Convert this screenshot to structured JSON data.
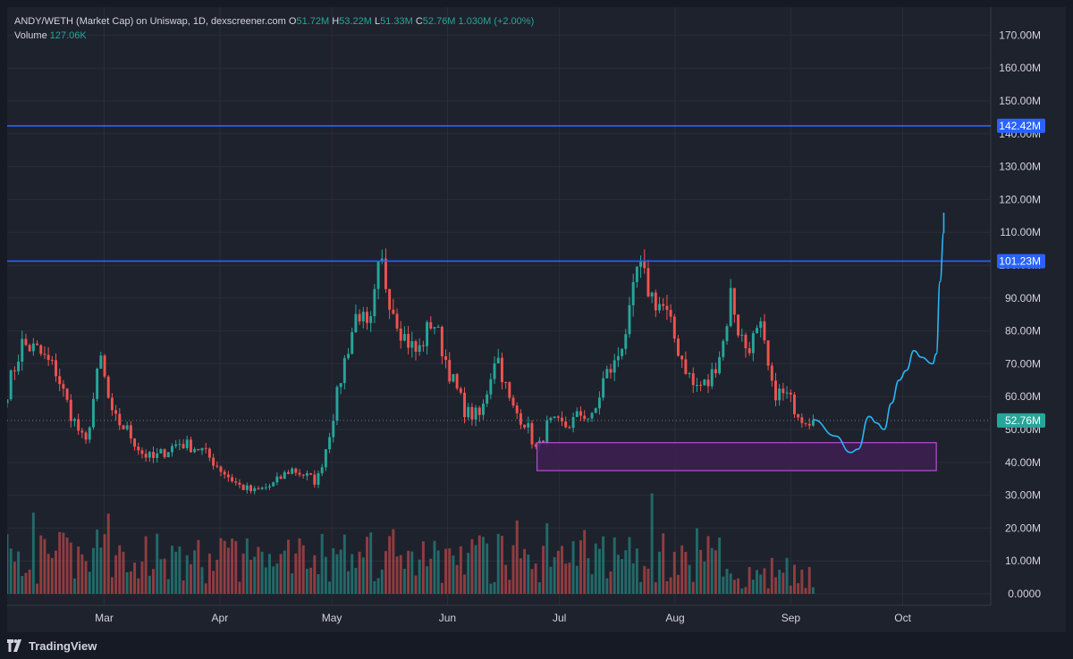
{
  "header": {
    "symbol": "ANDY/WETH (Market Cap) on Uniswap, 1D, dexscreener.com",
    "open_label": "O",
    "open": "51.72M",
    "high_label": "H",
    "high": "53.22M",
    "low_label": "L",
    "low": "51.33M",
    "close_label": "C",
    "close": "52.76M",
    "change": "1.030M (+2.00%)",
    "volume_label": "Volume",
    "volume": "127.06K"
  },
  "footer": {
    "brand": "TradingView"
  },
  "colors": {
    "background": "#1e222d",
    "grid": "#2a2e39",
    "up": "#26a69a",
    "down": "#ef5350",
    "hline": "#2962ff",
    "zone_fill": "#3d1f52",
    "zone_border": "#b74fd0",
    "projection": "#29b6f6",
    "text": "#d1d4dc"
  },
  "chart_data": {
    "type": "candlestick",
    "y_axis": {
      "ticks": [
        "170.00M",
        "160.00M",
        "150.00M",
        "140.00M",
        "130.00M",
        "120.00M",
        "110.00M",
        "100.00M",
        "90.00M",
        "80.00M",
        "70.00M",
        "60.00M",
        "50.00M",
        "40.00M",
        "30.00M",
        "20.00M",
        "10.00M",
        "0.0000"
      ],
      "tick_values": [
        170,
        160,
        150,
        140,
        130,
        120,
        110,
        100,
        90,
        80,
        70,
        60,
        50,
        40,
        30,
        20,
        10,
        0
      ],
      "unit": "M",
      "range": [
        0,
        176
      ]
    },
    "x_axis": {
      "labels": [
        "Mar",
        "Apr",
        "May",
        "Jun",
        "Jul",
        "Aug",
        "Sep",
        "Oct"
      ],
      "label_dates": [
        "2024-03-01",
        "2024-04-01",
        "2024-05-01",
        "2024-06-01",
        "2024-07-01",
        "2024-08-01",
        "2024-09-01",
        "2024-10-01"
      ],
      "start": "2024-02-04",
      "end": "2024-10-15"
    },
    "horizontal_levels": [
      {
        "value": 142.42,
        "label": "142.42M"
      },
      {
        "value": 101.23,
        "label": "101.23M"
      }
    ],
    "last_price": {
      "value": 52.76,
      "label": "52.76M"
    },
    "zone": {
      "start": "2024-06-25",
      "end": "2024-10-10",
      "top": 46,
      "bottom": 37.5
    },
    "projection_path": [
      [
        "2024-09-07",
        53
      ],
      [
        "2024-09-13",
        48
      ],
      [
        "2024-09-17",
        43
      ],
      [
        "2024-09-19",
        44
      ],
      [
        "2024-09-22",
        54
      ],
      [
        "2024-09-24",
        52
      ],
      [
        "2024-09-26",
        50
      ],
      [
        "2024-09-28",
        58
      ],
      [
        "2024-09-30",
        65
      ],
      [
        "2024-10-02",
        68
      ],
      [
        "2024-10-04",
        74
      ],
      [
        "2024-10-06",
        72
      ],
      [
        "2024-10-09",
        70
      ],
      [
        "2024-10-10",
        73
      ],
      [
        "2024-10-11",
        95
      ],
      [
        "2024-10-12",
        110
      ],
      [
        "2024-10-12",
        116
      ]
    ],
    "anchors": [
      [
        "2024-02-04",
        62
      ],
      [
        "2024-02-08",
        76
      ],
      [
        "2024-02-12",
        74
      ],
      [
        "2024-02-17",
        68
      ],
      [
        "2024-02-21",
        55
      ],
      [
        "2024-02-25",
        45
      ],
      [
        "2024-02-29",
        72
      ],
      [
        "2024-03-03",
        54
      ],
      [
        "2024-03-07",
        50
      ],
      [
        "2024-03-11",
        43
      ],
      [
        "2024-03-14",
        41
      ],
      [
        "2024-03-21",
        46
      ],
      [
        "2024-03-27",
        44
      ],
      [
        "2024-04-02",
        37
      ],
      [
        "2024-04-06",
        33
      ],
      [
        "2024-04-10",
        31
      ],
      [
        "2024-04-15",
        33
      ],
      [
        "2024-04-20",
        38
      ],
      [
        "2024-04-24",
        36
      ],
      [
        "2024-04-27",
        34
      ],
      [
        "2024-04-30",
        47
      ],
      [
        "2024-05-04",
        69
      ],
      [
        "2024-05-08",
        87
      ],
      [
        "2024-05-11",
        78
      ],
      [
        "2024-05-14",
        102
      ],
      [
        "2024-05-16",
        92
      ],
      [
        "2024-05-20",
        79
      ],
      [
        "2024-05-24",
        73
      ],
      [
        "2024-05-28",
        84
      ],
      [
        "2024-06-02",
        66
      ],
      [
        "2024-06-06",
        55
      ],
      [
        "2024-06-10",
        54
      ],
      [
        "2024-06-14",
        74
      ],
      [
        "2024-06-18",
        57
      ],
      [
        "2024-06-22",
        52
      ],
      [
        "2024-06-25",
        43
      ],
      [
        "2024-06-28",
        52
      ],
      [
        "2024-07-03",
        51
      ],
      [
        "2024-07-07",
        55
      ],
      [
        "2024-07-10",
        53
      ],
      [
        "2024-07-13",
        66
      ],
      [
        "2024-07-16",
        70
      ],
      [
        "2024-07-20",
        85
      ],
      [
        "2024-07-22",
        100
      ],
      [
        "2024-07-26",
        90
      ],
      [
        "2024-07-29",
        87
      ],
      [
        "2024-08-02",
        74
      ],
      [
        "2024-08-06",
        63
      ],
      [
        "2024-08-10",
        64
      ],
      [
        "2024-08-14",
        77
      ],
      [
        "2024-08-16",
        92
      ],
      [
        "2024-08-18",
        80
      ],
      [
        "2024-08-20",
        75
      ],
      [
        "2024-08-24",
        80
      ],
      [
        "2024-08-27",
        62
      ],
      [
        "2024-08-31",
        60
      ],
      [
        "2024-09-04",
        54
      ],
      [
        "2024-09-07",
        52.76
      ]
    ],
    "candle_count": 216,
    "volume_max": 33
  }
}
